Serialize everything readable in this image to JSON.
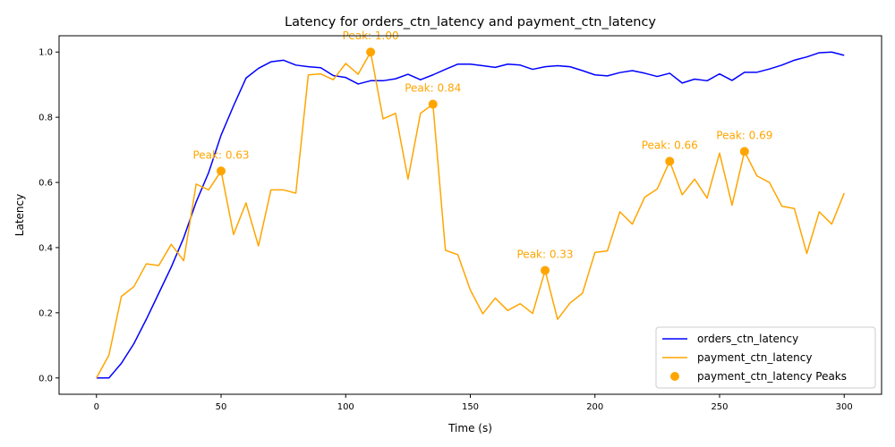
{
  "chart_data": {
    "type": "line",
    "title": "Latency for orders_ctn_latency and payment_ctn_latency",
    "xlabel": "Time (s)",
    "ylabel": "Latency",
    "xlim": [
      -15,
      315
    ],
    "ylim": [
      -0.05,
      1.05
    ],
    "xticks": [
      0,
      50,
      100,
      150,
      200,
      250,
      300
    ],
    "yticks": [
      0.0,
      0.2,
      0.4,
      0.6,
      0.8,
      1.0
    ],
    "xtick_labels": [
      "0",
      "50",
      "100",
      "150",
      "200",
      "250",
      "300"
    ],
    "ytick_labels": [
      "0.0",
      "0.2",
      "0.4",
      "0.6",
      "0.8",
      "1.0"
    ],
    "grid": false,
    "legend_position": "lower-right",
    "x": [
      0,
      5,
      10,
      15,
      20,
      25,
      30,
      35,
      40,
      45,
      50,
      55,
      60,
      65,
      70,
      75,
      80,
      85,
      90,
      95,
      100,
      105,
      110,
      115,
      120,
      125,
      130,
      135,
      140,
      145,
      150,
      155,
      160,
      165,
      170,
      175,
      180,
      185,
      190,
      195,
      200,
      205,
      210,
      215,
      220,
      225,
      230,
      235,
      240,
      245,
      250,
      255,
      260,
      265,
      270,
      275,
      280,
      285,
      290,
      295,
      300
    ],
    "series": [
      {
        "name": "orders_ctn_latency",
        "color": "#0000ff",
        "values": [
          0.0,
          0.0,
          0.045,
          0.105,
          0.18,
          0.26,
          0.34,
          0.43,
          0.54,
          0.63,
          0.745,
          0.835,
          0.92,
          0.95,
          0.97,
          0.975,
          0.96,
          0.955,
          0.952,
          0.928,
          0.922,
          0.902,
          0.912,
          0.912,
          0.918,
          0.932,
          0.915,
          0.93,
          0.947,
          0.963,
          0.963,
          0.958,
          0.953,
          0.963,
          0.96,
          0.947,
          0.955,
          0.958,
          0.955,
          0.943,
          0.93,
          0.927,
          0.937,
          0.943,
          0.935,
          0.925,
          0.935,
          0.905,
          0.917,
          0.912,
          0.933,
          0.913,
          0.938,
          0.938,
          0.948,
          0.96,
          0.975,
          0.985,
          0.998,
          1.0,
          0.99
        ]
      },
      {
        "name": "payment_ctn_latency",
        "color": "#ffa500",
        "values": [
          0.0,
          0.07,
          0.25,
          0.28,
          0.35,
          0.345,
          0.41,
          0.36,
          0.595,
          0.577,
          0.635,
          0.44,
          0.537,
          0.405,
          0.577,
          0.577,
          0.567,
          0.93,
          0.933,
          0.915,
          0.965,
          0.932,
          1.0,
          0.795,
          0.812,
          0.61,
          0.812,
          0.84,
          0.392,
          0.378,
          0.27,
          0.197,
          0.245,
          0.207,
          0.228,
          0.198,
          0.33,
          0.18,
          0.23,
          0.26,
          0.385,
          0.39,
          0.51,
          0.472,
          0.555,
          0.58,
          0.665,
          0.562,
          0.61,
          0.552,
          0.69,
          0.53,
          0.695,
          0.62,
          0.6,
          0.527,
          0.52,
          0.382,
          0.51,
          0.472,
          0.567
        ]
      }
    ],
    "peaks": {
      "name": "payment_ctn_latency Peaks",
      "color": "#ffa500",
      "points": [
        {
          "x": 50,
          "y": 0.635,
          "label": "Peak: 0.63"
        },
        {
          "x": 110,
          "y": 1.0,
          "label": "Peak: 1.00"
        },
        {
          "x": 135,
          "y": 0.84,
          "label": "Peak: 0.84"
        },
        {
          "x": 180,
          "y": 0.33,
          "label": "Peak: 0.33"
        },
        {
          "x": 230,
          "y": 0.665,
          "label": "Peak: 0.66"
        },
        {
          "x": 260,
          "y": 0.695,
          "label": "Peak: 0.69"
        }
      ]
    },
    "legend": [
      "orders_ctn_latency",
      "payment_ctn_latency",
      "payment_ctn_latency Peaks"
    ]
  }
}
